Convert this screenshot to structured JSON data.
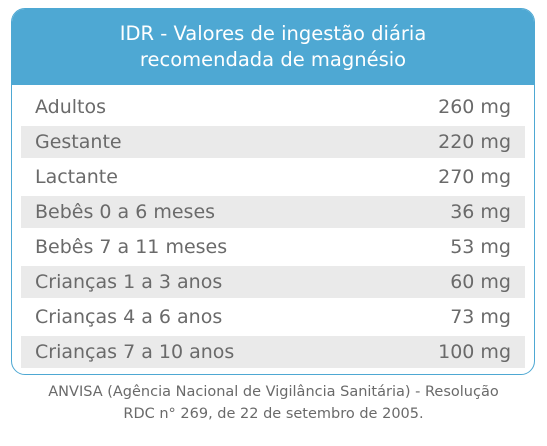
{
  "table": {
    "title_line1": "IDR - Valores de ingestão diária",
    "title_line2": "recomendada de magnésio",
    "rows": [
      {
        "group": "Adultos",
        "value": "260 mg"
      },
      {
        "group": "Gestante",
        "value": "220 mg"
      },
      {
        "group": "Lactante",
        "value": "270 mg"
      },
      {
        "group": "Bebês 0 a 6 meses",
        "value": "36 mg"
      },
      {
        "group": "Bebês 7 a 11 meses",
        "value": "53 mg"
      },
      {
        "group": "Crianças 1 a 3 anos",
        "value": "60 mg"
      },
      {
        "group": "Crianças 4 a 6 anos",
        "value": "73 mg"
      },
      {
        "group": "Crianças 7 a 10 anos",
        "value": "100 mg"
      }
    ]
  },
  "source": {
    "line1": "ANVISA (Agência Nacional de Vigilância Sanitária) - Resolução",
    "line2": "RDC n° 269, de 22 de setembro de 2005."
  },
  "colors": {
    "header_bg": "#4ea8d3",
    "shaded_row": "#eaeaea",
    "text": "#6a6a6a"
  }
}
